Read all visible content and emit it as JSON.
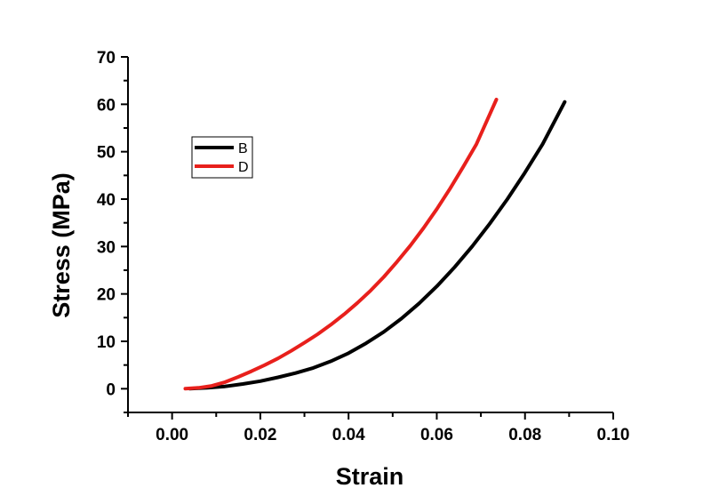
{
  "chart_data": {
    "type": "line",
    "title": "",
    "xlabel": "Strain",
    "ylabel": "Stress (MPa)",
    "xlim": [
      -0.01,
      0.1
    ],
    "ylim": [
      -5,
      70
    ],
    "xticks": [
      "0.00",
      "0.02",
      "0.04",
      "0.06",
      "0.08",
      "0.10"
    ],
    "yticks": [
      "0",
      "10",
      "20",
      "30",
      "40",
      "50",
      "60",
      "70"
    ],
    "grid": false,
    "legend_position": "upper-left",
    "series": [
      {
        "name": "B",
        "color": "#000000",
        "x": [
          0.004,
          0.008,
          0.012,
          0.016,
          0.02,
          0.024,
          0.028,
          0.032,
          0.036,
          0.04,
          0.044,
          0.048,
          0.052,
          0.056,
          0.06,
          0.064,
          0.068,
          0.072,
          0.076,
          0.08,
          0.084,
          0.089
        ],
        "y": [
          0.0,
          0.2,
          0.5,
          1.0,
          1.6,
          2.4,
          3.3,
          4.4,
          5.8,
          7.5,
          9.6,
          12.0,
          14.8,
          18.0,
          21.6,
          25.6,
          30.0,
          34.8,
          40.0,
          45.6,
          51.6,
          60.5
        ]
      },
      {
        "name": "D",
        "color": "#e8201c",
        "x": [
          0.003,
          0.006,
          0.009,
          0.012,
          0.015,
          0.018,
          0.021,
          0.024,
          0.027,
          0.03,
          0.033,
          0.036,
          0.039,
          0.042,
          0.045,
          0.048,
          0.051,
          0.054,
          0.057,
          0.06,
          0.063,
          0.066,
          0.069,
          0.0735
        ],
        "y": [
          0.0,
          0.2,
          0.6,
          1.4,
          2.5,
          3.7,
          5.0,
          6.4,
          8.0,
          9.7,
          11.5,
          13.5,
          15.7,
          18.1,
          20.7,
          23.6,
          26.8,
          30.2,
          33.9,
          37.9,
          42.2,
          46.8,
          51.6,
          61.0
        ]
      }
    ]
  }
}
